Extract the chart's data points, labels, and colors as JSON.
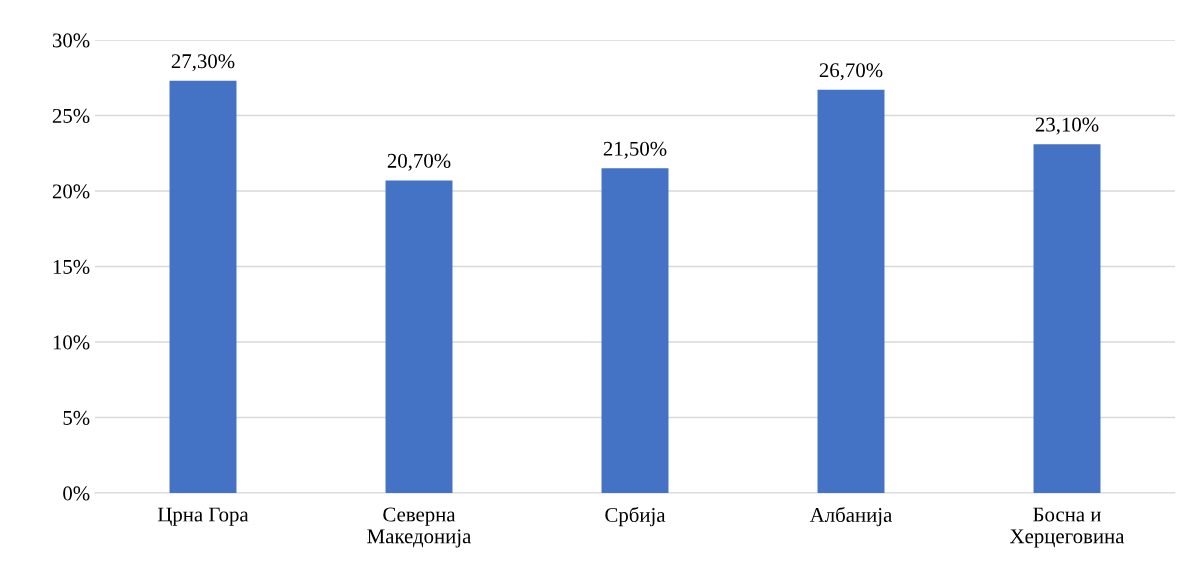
{
  "chart_data": {
    "type": "bar",
    "categories": [
      "Црна Гора",
      "Северна\nМакедонија",
      "Србија",
      "Албанија",
      "Босна и\nХерцеговина"
    ],
    "values": [
      27.3,
      20.7,
      21.5,
      26.7,
      23.1
    ],
    "value_labels": [
      "27,30%",
      "20,70%",
      "21,50%",
      "26,70%",
      "23,10%"
    ],
    "color": "#4472c4",
    "ylim": [
      0,
      30
    ],
    "yticks": [
      {
        "value": 0,
        "label": "0%"
      },
      {
        "value": 5,
        "label": "5%"
      },
      {
        "value": 10,
        "label": "10%"
      },
      {
        "value": 15,
        "label": "15%"
      },
      {
        "value": 20,
        "label": "20%"
      },
      {
        "value": 25,
        "label": "25%"
      },
      {
        "value": 30,
        "label": "30%"
      }
    ],
    "grid": "y",
    "legend": false
  }
}
